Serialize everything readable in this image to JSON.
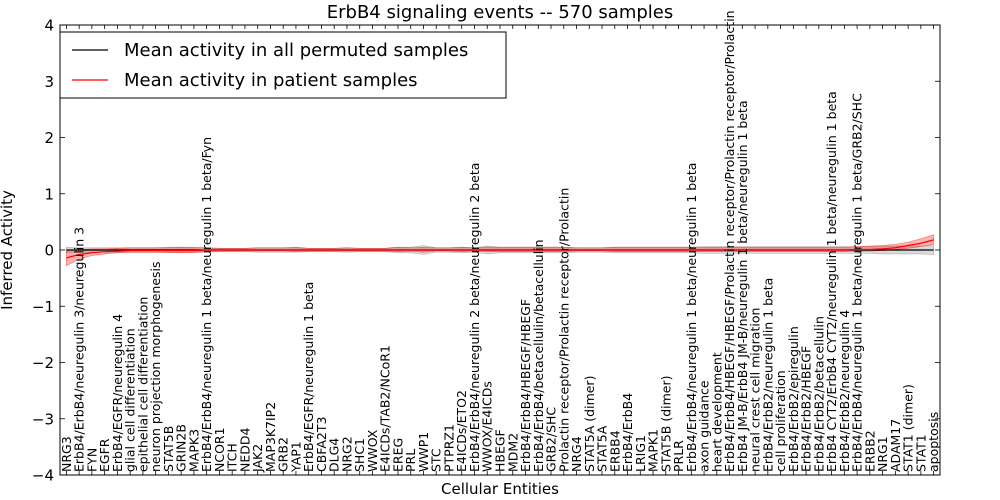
{
  "chart_data": {
    "type": "line",
    "title": "ErbB4 signaling events -- 570 samples",
    "xlabel": "Cellular Entities",
    "ylabel": "Inferred Activity",
    "ylim": [
      -4,
      4
    ],
    "yticks": [
      -4,
      -3,
      -2,
      -1,
      0,
      1,
      2,
      3,
      4
    ],
    "ytick_labels": [
      "−4",
      "−3",
      "−2",
      "−1",
      "0",
      "1",
      "2",
      "3",
      "4"
    ],
    "legend_position": "top-left",
    "legend": [
      {
        "label": "Mean activity in all permuted samples",
        "color": "#000000"
      },
      {
        "label": "Mean activity in patient samples",
        "color": "#ff0000"
      }
    ],
    "categories": [
      "NRG3",
      "ErbB4/ErbB4/neuregulin 3/neuregulin 3",
      "FYN",
      "EGFR",
      "ErbB4/EGFR/neuregulin 4",
      "glial cell differentiation",
      "epithelial cell differentiation",
      "neuron projection morphogenesis",
      "STAT5B",
      "GRIN2B",
      "MAPK3",
      "ErbB4/ErbB4/neuregulin 1 beta/neuregulin 1 beta/Fyn",
      "NCOR1",
      "ITCH",
      "NEDD4",
      "JAK2",
      "MAP3K7IP2",
      "GRB2",
      "YAP1",
      "ErbB4/EGFR/neuregulin 1 beta",
      "CBFA2T3",
      "DLG4",
      "NRG2",
      "SHC1",
      "WWOX",
      "E4ICDs/TAB2/NCoR1",
      "EREG",
      "PRL",
      "WWP1",
      "STC",
      "PTPRZ1",
      "E4ICDs/ETO2",
      "ErbB4/ErbB4/neuregulin 2 beta/neuregulin 2 beta",
      "WWOX/E4ICDs",
      "HBEGF",
      "MDM2",
      "ErbB4/ErbB4/HBEGF/HBEGF",
      "ErbB4/ErbB4/betacellulin/betacellulin",
      "GRB2/SHC",
      "Prolactin receptor/Prolactin receptor/Prolactin",
      "NRG4",
      "STAT5A (dimer)",
      "STAT5A",
      "ERBB4",
      "ErbB4/ErbB4",
      "LRIG1",
      "MAPK1",
      "STAT5B (dimer)",
      "PRLR",
      "ErbB4/ErbB4/neuregulin 1 beta/neuregulin 1 beta",
      "axon guidance",
      "heart development",
      "ErbB4/ErbB4/HBEGF/HBEGF/Prolactin receptor/Prolactin receptor/Prolactin",
      "ErbB4 JM-B/ErbB4 JM-B/neuregulin 1 beta/neuregulin 1 beta",
      "neural crest cell migration",
      "ErbB4/ErbB2/neuregulin 1 beta",
      "cell proliferation",
      "ErbB4/ErbB2/epiregulin",
      "ErbB4/ErbB2/HBEGF",
      "ErbB4/ErbB2/betacellulin",
      "ErbB4 CYT2/ErbB4 CYT2/neuregulin 1 beta/neuregulin 1 beta",
      "ErbB4/ErbB2/neuregulin 4",
      "ErbB4/ErbB4/neuregulin 1 beta/neuregulin 1 beta/GRB2/SHC",
      "ERBB2",
      "NRG1",
      "ADAM17",
      "STAT1 (dimer)",
      "STAT1",
      "apoptosis"
    ],
    "series": [
      {
        "name": "Mean activity in all permuted samples",
        "color": "#000000",
        "values": [
          0,
          0,
          0,
          0,
          0,
          0,
          0,
          0,
          0,
          0,
          0,
          0,
          0,
          0,
          0,
          0,
          0,
          0,
          0,
          0,
          0,
          0,
          0,
          0,
          0,
          0,
          0,
          0,
          0,
          0,
          0,
          0,
          0,
          0,
          0,
          0,
          0,
          0,
          0,
          0,
          0,
          0,
          0,
          0,
          0,
          0,
          0,
          0,
          0,
          0,
          0,
          0,
          0,
          0,
          0,
          0,
          0,
          0,
          0,
          0,
          0,
          0,
          0,
          0,
          0,
          0,
          0,
          0,
          0
        ],
        "band_lower": [
          -0.05,
          -0.04,
          -0.04,
          -0.04,
          -0.04,
          -0.04,
          -0.04,
          -0.04,
          -0.05,
          -0.05,
          -0.05,
          -0.04,
          -0.03,
          -0.03,
          -0.03,
          -0.04,
          -0.04,
          -0.04,
          -0.04,
          -0.03,
          -0.03,
          -0.03,
          -0.04,
          -0.03,
          -0.03,
          -0.03,
          -0.05,
          -0.05,
          -0.08,
          -0.04,
          -0.04,
          -0.05,
          -0.04,
          -0.07,
          -0.05,
          -0.05,
          -0.05,
          -0.05,
          -0.05,
          -0.05,
          -0.04,
          -0.04,
          -0.04,
          -0.05,
          -0.05,
          -0.05,
          -0.05,
          -0.05,
          -0.05,
          -0.05,
          -0.06,
          -0.06,
          -0.06,
          -0.06,
          -0.06,
          -0.06,
          -0.06,
          -0.06,
          -0.06,
          -0.06,
          -0.06,
          -0.06,
          -0.06,
          -0.06,
          -0.07,
          -0.07,
          -0.07,
          -0.07,
          -0.08
        ],
        "band_upper": [
          0.05,
          0.04,
          0.04,
          0.04,
          0.04,
          0.04,
          0.04,
          0.04,
          0.05,
          0.05,
          0.05,
          0.04,
          0.03,
          0.03,
          0.03,
          0.04,
          0.04,
          0.04,
          0.04,
          0.03,
          0.03,
          0.03,
          0.04,
          0.03,
          0.03,
          0.03,
          0.05,
          0.05,
          0.08,
          0.04,
          0.04,
          0.05,
          0.04,
          0.07,
          0.05,
          0.05,
          0.05,
          0.05,
          0.05,
          0.05,
          0.04,
          0.04,
          0.04,
          0.05,
          0.05,
          0.05,
          0.05,
          0.05,
          0.05,
          0.05,
          0.06,
          0.06,
          0.06,
          0.06,
          0.06,
          0.06,
          0.06,
          0.06,
          0.06,
          0.06,
          0.06,
          0.06,
          0.06,
          0.06,
          0.07,
          0.07,
          0.07,
          0.07,
          0.08
        ]
      },
      {
        "name": "Mean activity in patient samples",
        "color": "#ff0000",
        "values": [
          -0.14,
          -0.08,
          -0.05,
          -0.03,
          -0.02,
          -0.01,
          -0.01,
          -0.01,
          -0.01,
          -0.01,
          -0.01,
          0,
          0,
          0,
          0,
          0,
          0,
          0,
          0,
          0,
          0,
          0,
          0,
          0,
          0,
          0,
          0,
          0,
          0,
          0,
          0,
          0,
          0,
          0,
          0,
          0,
          0,
          0,
          0,
          0,
          0,
          0,
          0,
          0,
          0,
          0,
          0,
          0,
          0,
          0,
          0,
          0,
          0,
          0,
          0,
          0,
          0,
          0,
          0,
          0,
          0,
          0,
          0.01,
          0.01,
          0.02,
          0.04,
          0.08,
          0.12,
          0.18
        ],
        "band_lower": [
          -0.28,
          -0.16,
          -0.1,
          -0.07,
          -0.05,
          -0.04,
          -0.04,
          -0.04,
          -0.04,
          -0.05,
          -0.04,
          -0.03,
          -0.02,
          -0.02,
          -0.02,
          -0.02,
          -0.02,
          -0.02,
          -0.03,
          -0.02,
          -0.02,
          -0.02,
          -0.02,
          -0.02,
          -0.02,
          -0.02,
          -0.03,
          -0.02,
          -0.04,
          -0.02,
          -0.02,
          -0.03,
          -0.02,
          -0.03,
          -0.03,
          -0.03,
          -0.03,
          -0.03,
          -0.03,
          -0.03,
          -0.02,
          -0.02,
          -0.02,
          -0.03,
          -0.03,
          -0.03,
          -0.03,
          -0.03,
          -0.03,
          -0.03,
          -0.03,
          -0.03,
          -0.03,
          -0.03,
          -0.03,
          -0.03,
          -0.03,
          -0.03,
          -0.03,
          -0.03,
          -0.03,
          -0.03,
          -0.02,
          -0.02,
          -0.01,
          0.01,
          0.03,
          0.06,
          0.1
        ],
        "band_upper": [
          0,
          0.01,
          0.02,
          0.02,
          0.03,
          0.04,
          0.04,
          0.04,
          0.04,
          0.05,
          0.04,
          0.04,
          0.03,
          0.03,
          0.03,
          0.04,
          0.04,
          0.04,
          0.05,
          0.03,
          0.03,
          0.03,
          0.04,
          0.03,
          0.03,
          0.03,
          0.05,
          0.04,
          0.05,
          0.04,
          0.04,
          0.05,
          0.04,
          0.05,
          0.05,
          0.05,
          0.05,
          0.05,
          0.05,
          0.05,
          0.04,
          0.04,
          0.04,
          0.05,
          0.05,
          0.05,
          0.05,
          0.05,
          0.05,
          0.05,
          0.05,
          0.05,
          0.05,
          0.05,
          0.05,
          0.05,
          0.05,
          0.05,
          0.05,
          0.05,
          0.05,
          0.05,
          0.06,
          0.07,
          0.08,
          0.1,
          0.14,
          0.2,
          0.27
        ]
      }
    ]
  }
}
